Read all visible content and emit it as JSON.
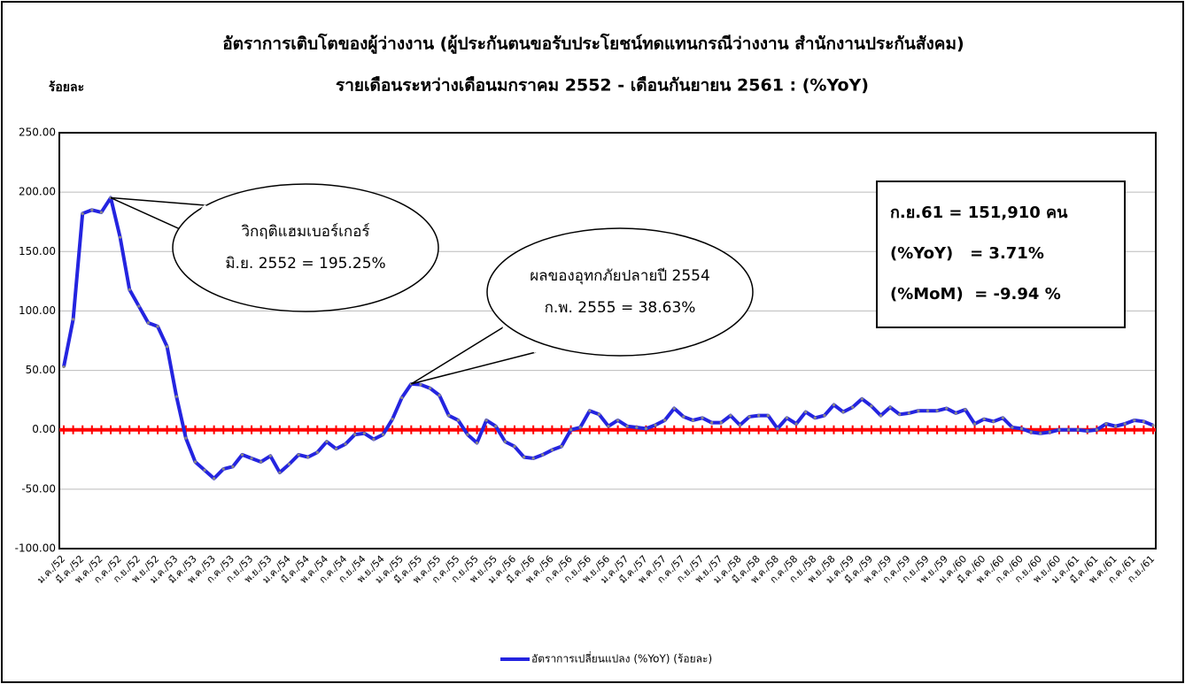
{
  "chart_data": {
    "type": "line",
    "title": "อัตราการเติบโตของผู้ว่างงาน (ผู้ประกันตนขอรับประโยชน์ทดแทนกรณีว่างงาน สำนักงานประกันสังคม)",
    "subtitle": "รายเดือนระหว่างเดือนมกราคม 2552 - เดือนกันยายน 2561 : (%YoY)",
    "y_label": "ร้อยละ",
    "categories": [
      "ม.ค./52",
      null,
      "มี.ค./52",
      null,
      "พ.ค./52",
      null,
      "ก.ค./52",
      null,
      "ก.ย./52",
      null,
      "พ.ย./52",
      null,
      "ม.ค./53",
      null,
      "มี.ค./53",
      null,
      "พ.ค./53",
      null,
      "ก.ค./53",
      null,
      "ก.ย./53",
      null,
      "พ.ย./53",
      null,
      "ม.ค./54",
      null,
      "มี.ค./54",
      null,
      "พ.ค./54",
      null,
      "ก.ค./54",
      null,
      "ก.ย./54",
      null,
      "พ.ย./54",
      null,
      "ม.ค./55",
      null,
      "มี.ค./55",
      null,
      "พ.ค./55",
      null,
      "ก.ค./55",
      null,
      "ก.ย./55",
      null,
      "พ.ย./55",
      null,
      "ม.ค./56",
      null,
      "มี.ค./56",
      null,
      "พ.ค./56",
      null,
      "ก.ค./56",
      null,
      "ก.ย./56",
      null,
      "พ.ย./56",
      null,
      "ม.ค./57",
      null,
      "มี.ค./57",
      null,
      "พ.ค./57",
      null,
      "ก.ค./57",
      null,
      "ก.ย./57",
      null,
      "พ.ย./57",
      null,
      "ม.ค./58",
      null,
      "มี.ค./58",
      null,
      "พ.ค./58",
      null,
      "ก.ค./58",
      null,
      "ก.ย./58",
      null,
      "พ.ย./58",
      null,
      "ม.ค./59",
      null,
      "มี.ค./59",
      null,
      "พ.ค./59",
      null,
      "ก.ค./59",
      null,
      "ก.ย./59",
      null,
      "พ.ย./59",
      null,
      "ม.ค./60",
      null,
      "มี.ค./60",
      null,
      "พ.ค./60",
      null,
      "ก.ค./60",
      null,
      "ก.ย./60",
      null,
      "พ.ย./60",
      null,
      "ม.ค./61",
      null,
      "มี.ค./61",
      null,
      "พ.ค./61",
      null,
      "ก.ค./61",
      null,
      "ก.ย./61"
    ],
    "series": [
      {
        "name": "อัตราการเปลี่ยนแปลง (%YoY) (ร้อยละ)",
        "color": "#2424e0",
        "values": [
          53,
          93,
          182,
          185,
          183,
          195.25,
          162,
          118,
          104,
          90,
          87,
          70,
          28,
          -7,
          -27,
          -34,
          -41,
          -33,
          -31,
          -21,
          -24,
          -27,
          -22,
          -36,
          -29,
          -21,
          -23,
          -19,
          -10,
          -16,
          -12,
          -4,
          -3,
          -8,
          -4,
          9,
          27,
          38.63,
          38,
          35,
          29,
          12,
          8,
          -4,
          -11,
          8,
          3,
          -10,
          -14,
          -23,
          -24,
          -21,
          -17,
          -14,
          0,
          2,
          16,
          13,
          3,
          8,
          3,
          2,
          1,
          4,
          8,
          18,
          11,
          8,
          10,
          6,
          6,
          12,
          4,
          11,
          12,
          12,
          1,
          10,
          5,
          15,
          10,
          12,
          21,
          15,
          19,
          26,
          20,
          12,
          19,
          13,
          14,
          16,
          16,
          16,
          18,
          14,
          17,
          5,
          9,
          7,
          10,
          2,
          1,
          -2,
          -3,
          -2,
          0,
          0,
          0,
          -1,
          0,
          5,
          3,
          5,
          8,
          7,
          3.71
        ]
      }
    ],
    "reference_line": {
      "value": 0,
      "color": "#ff0000"
    },
    "ylim": [
      -100,
      250
    ],
    "yticks": [
      {
        "value": -100,
        "label": "-100.00"
      },
      {
        "value": -50,
        "label": "-50.00"
      },
      {
        "value": 0,
        "label": "0.00"
      },
      {
        "value": 50,
        "label": "50.00"
      },
      {
        "value": 100,
        "label": "100.00"
      },
      {
        "value": 150,
        "label": "150.00"
      },
      {
        "value": 200,
        "label": "200.00"
      },
      {
        "value": 250,
        "label": "250.00"
      }
    ],
    "grid": true,
    "legend": "bottom",
    "annotations": [
      {
        "lines": [
          "วิกฤติแฮมเบอร์เกอร์",
          "มิ.ย. 2552 = 195.25%"
        ],
        "point_index": 5
      },
      {
        "lines": [
          "ผลของอุทกภัยปลายปี 2554",
          "ก.พ. 2555 = 38.63%"
        ],
        "point_index": 37
      }
    ],
    "info_box": [
      "ก.ย.61 = 151,910 คน",
      "(%YoY)   = 3.71%",
      "(%MoM)  = -9.94 %"
    ]
  }
}
